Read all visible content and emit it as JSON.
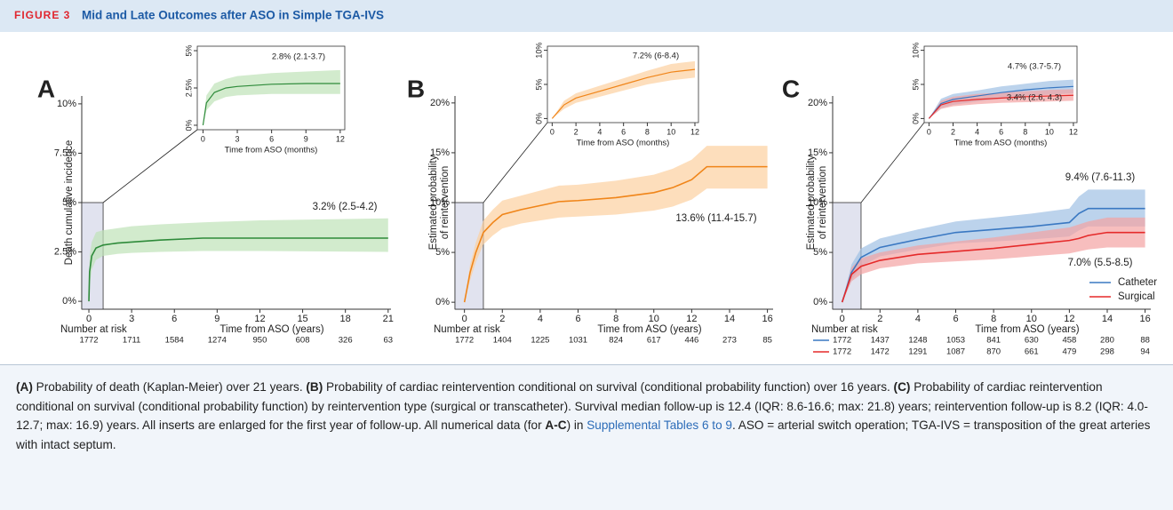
{
  "header": {
    "label": "FIGURE 3",
    "title": "Mid and Late Outcomes after ASO in Simple TGA-IVS"
  },
  "chart_data": [
    {
      "type": "line",
      "panel": "A",
      "y_label": "Death cumulative incidence",
      "x_label": "Time from ASO (years)",
      "x": [
        0,
        0.05,
        0.2,
        0.5,
        1,
        2,
        3,
        5,
        8,
        12,
        21
      ],
      "series": [
        {
          "color": "#2e8b3a",
          "band_color": "#bfe2b8",
          "values": [
            0,
            1.5,
            2.3,
            2.7,
            2.85,
            2.95,
            3.0,
            3.1,
            3.2,
            3.2,
            3.2
          ],
          "lower": [
            0,
            0.8,
            1.6,
            2.1,
            2.3,
            2.4,
            2.45,
            2.5,
            2.55,
            2.55,
            2.5
          ],
          "upper": [
            0,
            2.3,
            3.0,
            3.5,
            3.6,
            3.7,
            3.8,
            3.9,
            4.0,
            4.1,
            4.2
          ]
        }
      ],
      "xlim": [
        -0.5,
        21.2
      ],
      "ylim": [
        -0.4,
        10.4
      ],
      "xticks": [
        0,
        3,
        6,
        9,
        12,
        15,
        18,
        21
      ],
      "yticks": [
        {
          "value": 0,
          "label": "0%"
        },
        {
          "value": 2.5,
          "label": "2.5%"
        },
        {
          "value": 5,
          "label": "5%"
        },
        {
          "value": 7.5,
          "label": "7.5%"
        },
        {
          "value": 10,
          "label": "10%"
        }
      ],
      "zoom_x": 1,
      "zoom_y": 5,
      "annotations": [
        "3.2% (2.5-4.2)"
      ],
      "risk_label": "Number at risk",
      "risk": [
        {
          "values": [
            1772,
            1711,
            1584,
            1274,
            950,
            608,
            326,
            63
          ]
        }
      ]
    },
    {
      "type": "line",
      "x_label": "Time from ASO (months)",
      "x": [
        0,
        0.3,
        1,
        2,
        3,
        6,
        9,
        12
      ],
      "series": [
        {
          "color": "#2e8b3a",
          "band_color": "#bfe2b8",
          "values": [
            0,
            1.5,
            2.2,
            2.5,
            2.6,
            2.75,
            2.8,
            2.8
          ],
          "lower": [
            0,
            1.0,
            1.6,
            1.9,
            2.0,
            2.1,
            2.1,
            2.1
          ],
          "upper": [
            0,
            2.0,
            2.8,
            3.1,
            3.3,
            3.5,
            3.6,
            3.7
          ]
        }
      ],
      "xlim": [
        -0.5,
        12.4
      ],
      "ylim": [
        -0.3,
        5.3
      ],
      "xticks": [
        0,
        3,
        6,
        9,
        12
      ],
      "yticks": [
        {
          "value": 0,
          "label": "0%"
        },
        {
          "value": 2.5,
          "label": "2.5%"
        },
        {
          "value": 5,
          "label": "5%"
        }
      ],
      "annotations": [
        "2.8% (2.1-3.7)"
      ]
    },
    {
      "type": "line",
      "panel": "B",
      "y_label": [
        "Estimated probability",
        "of reintervention"
      ],
      "x_label": "Time from ASO (years)",
      "x": [
        0,
        0.3,
        0.6,
        1,
        1.5,
        2,
        3,
        4,
        5,
        6,
        8,
        10,
        11,
        12,
        12.8,
        16
      ],
      "series": [
        {
          "color": "#f08519",
          "band_color": "#fcd0a0",
          "values": [
            0,
            3,
            5,
            7,
            8,
            8.8,
            9.3,
            9.7,
            10.1,
            10.2,
            10.5,
            11,
            11.5,
            12.3,
            13.6,
            13.6
          ],
          "lower": [
            0,
            2.2,
            4,
            5.8,
            6.7,
            7.4,
            7.9,
            8.2,
            8.5,
            8.6,
            8.8,
            9.2,
            9.6,
            10.3,
            11.4,
            11.4
          ],
          "upper": [
            0,
            3.8,
            6,
            8.2,
            9.3,
            10.2,
            10.7,
            11.2,
            11.7,
            11.8,
            12.2,
            12.8,
            13.4,
            14.3,
            15.7,
            15.7
          ]
        }
      ],
      "xlim": [
        -0.5,
        16.3
      ],
      "ylim": [
        -0.7,
        20.7
      ],
      "xticks": [
        0,
        2,
        4,
        6,
        8,
        10,
        12,
        14,
        16
      ],
      "yticks": [
        {
          "value": 0,
          "label": "0%"
        },
        {
          "value": 5,
          "label": "5%"
        },
        {
          "value": 10,
          "label": "10%"
        },
        {
          "value": 15,
          "label": "15%"
        },
        {
          "value": 20,
          "label": "20%"
        }
      ],
      "zoom_x": 1,
      "zoom_y": 10,
      "annotations": [
        "13.6% (11.4-15.7)"
      ],
      "risk_label": "Number at risk",
      "risk": [
        {
          "values": [
            1772,
            1404,
            1225,
            1031,
            824,
            617,
            446,
            273,
            85
          ]
        }
      ]
    },
    {
      "type": "line",
      "x_label": "Time from ASO (months)",
      "x": [
        0,
        1,
        2,
        4,
        6,
        8,
        10,
        12
      ],
      "series": [
        {
          "color": "#f08519",
          "band_color": "#fcd0a0",
          "values": [
            0,
            2,
            3,
            4,
            5,
            6,
            6.8,
            7.2
          ],
          "lower": [
            0,
            1.4,
            2.3,
            3.2,
            4.1,
            5,
            5.6,
            6
          ],
          "upper": [
            0,
            2.6,
            3.7,
            4.8,
            5.9,
            7,
            8,
            8.4
          ]
        }
      ],
      "xlim": [
        -0.4,
        12.3
      ],
      "ylim": [
        -0.6,
        10.6
      ],
      "xticks": [
        0,
        2,
        4,
        6,
        8,
        10,
        12
      ],
      "yticks": [
        {
          "value": 0,
          "label": "0%"
        },
        {
          "value": 5,
          "label": "5%"
        },
        {
          "value": 10,
          "label": "10%"
        }
      ],
      "annotations": [
        "7.2% (6-8.4)"
      ]
    },
    {
      "type": "line",
      "panel": "C",
      "y_label": [
        "Estimated probability",
        "of reintervention"
      ],
      "x_label": "Time from ASO (years)",
      "x": [
        0,
        0.5,
        1,
        2,
        4,
        6,
        8,
        10,
        12,
        12.5,
        13,
        14,
        16
      ],
      "series": [
        {
          "name": "Catheter",
          "color": "#3a78c2",
          "band_color": "#9fc0e4",
          "values": [
            0,
            3,
            4.5,
            5.5,
            6.3,
            7,
            7.3,
            7.6,
            8,
            8.9,
            9.4,
            9.4,
            9.4
          ],
          "lower": [
            0,
            2.2,
            3.6,
            4.6,
            5.3,
            5.9,
            6.1,
            6.3,
            6.6,
            7.2,
            7.6,
            7.6,
            7.6
          ],
          "upper": [
            0,
            3.8,
            5.4,
            6.4,
            7.3,
            8.1,
            8.5,
            8.9,
            9.4,
            10.6,
            11.3,
            11.3,
            11.3
          ]
        },
        {
          "name": "Surgical",
          "color": "#e52a2a",
          "band_color": "#f3a3a3",
          "values": [
            0,
            2.8,
            3.6,
            4.2,
            4.8,
            5.1,
            5.4,
            5.8,
            6.2,
            6.4,
            6.7,
            7.0,
            7.0
          ],
          "lower": [
            0,
            2.1,
            2.8,
            3.4,
            3.9,
            4.1,
            4.3,
            4.6,
            4.9,
            5.1,
            5.3,
            5.5,
            5.5
          ],
          "upper": [
            0,
            3.5,
            4.4,
            5.0,
            5.7,
            6.1,
            6.5,
            7.0,
            7.5,
            7.8,
            8.1,
            8.5,
            8.5
          ]
        }
      ],
      "xlim": [
        -0.5,
        16.3
      ],
      "ylim": [
        -0.7,
        20.7
      ],
      "xticks": [
        0,
        2,
        4,
        6,
        8,
        10,
        12,
        14,
        16
      ],
      "yticks": [
        {
          "value": 0,
          "label": "0%"
        },
        {
          "value": 5,
          "label": "5%"
        },
        {
          "value": 10,
          "label": "10%"
        },
        {
          "value": 15,
          "label": "15%"
        },
        {
          "value": 20,
          "label": "20%"
        }
      ],
      "zoom_x": 1,
      "zoom_y": 10,
      "legend": "lower right",
      "annotations": [
        "9.4% (7.6-11.3)",
        "7.0% (5.5-8.5)"
      ],
      "risk_label": "Number at risk",
      "risk": [
        {
          "color": "#3a78c2",
          "values": [
            1772,
            1437,
            1248,
            1053,
            841,
            630,
            458,
            280,
            88
          ]
        },
        {
          "color": "#e52a2a",
          "values": [
            1772,
            1472,
            1291,
            1087,
            870,
            661,
            479,
            298,
            94
          ]
        }
      ]
    },
    {
      "type": "line",
      "x_label": "Time from ASO (months)",
      "x": [
        0,
        1,
        2,
        4,
        6,
        8,
        10,
        12
      ],
      "series": [
        {
          "name": "Catheter",
          "color": "#3a78c2",
          "band_color": "#9fc0e4",
          "values": [
            0,
            2.2,
            2.8,
            3.3,
            3.8,
            4.2,
            4.5,
            4.7
          ],
          "lower": [
            0,
            1.5,
            2.0,
            2.5,
            2.9,
            3.3,
            3.5,
            3.7
          ],
          "upper": [
            0,
            2.9,
            3.6,
            4.1,
            4.7,
            5.1,
            5.5,
            5.7
          ]
        },
        {
          "name": "Surgical",
          "color": "#e52a2a",
          "band_color": "#f3a3a3",
          "values": [
            0,
            2.0,
            2.5,
            2.8,
            3.0,
            3.2,
            3.3,
            3.4
          ],
          "lower": [
            0,
            1.4,
            1.8,
            2.1,
            2.3,
            2.4,
            2.5,
            2.6
          ],
          "upper": [
            0,
            2.6,
            3.2,
            3.6,
            3.8,
            4.0,
            4.2,
            4.3
          ]
        }
      ],
      "xlim": [
        -0.4,
        12.3
      ],
      "ylim": [
        -0.6,
        10.6
      ],
      "xticks": [
        0,
        2,
        4,
        6,
        8,
        10,
        12
      ],
      "yticks": [
        {
          "value": 0,
          "label": "0%"
        },
        {
          "value": 5,
          "label": "5%"
        },
        {
          "value": 10,
          "label": "10%"
        }
      ],
      "annotations": [
        "4.7% (3.7-5.7)",
        "3.4% (2.6, 4.3)"
      ]
    }
  ],
  "caption": [
    {
      "text": "(A)",
      "bold": true
    },
    {
      "text": " Probability of death (Kaplan-Meier) over 21 years. "
    },
    {
      "text": "(B)",
      "bold": true
    },
    {
      "text": " Probability of cardiac reintervention conditional on survival (conditional probability function) over 16 years. "
    },
    {
      "text": "(C)",
      "bold": true
    },
    {
      "text": " Probability of cardiac reintervention conditional on survival (conditional probability function) by reintervention type (surgical or transcatheter). Survival median follow-up is 12.4 (IQR: 8.6-16.6; max: 21.8) years; reintervention follow-up is 8.2 (IQR: 4.0-12.7; max: 16.9) years. All inserts are enlarged for the first year of follow-up. All numerical data (for "
    },
    {
      "text": "A-C",
      "bold": true
    },
    {
      "text": ") in "
    },
    {
      "text": "Supplemental Tables 6 to 9",
      "link": true
    },
    {
      "text": ". ASO = arterial switch operation; TGA-IVS = transposition of the great arteries with intact septum."
    }
  ]
}
